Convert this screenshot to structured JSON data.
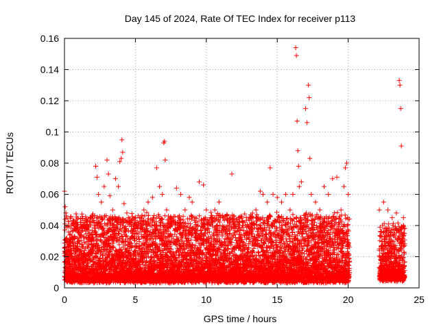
{
  "chart_data": {
    "type": "scatter",
    "title": "Day 145 of 2024, Rate Of TEC Index for receiver p113",
    "xlabel": "GPS time / hours",
    "ylabel": "ROTI / TECUs",
    "xlim": [
      0,
      25
    ],
    "ylim": [
      0,
      0.16
    ],
    "xticks": [
      0,
      5,
      10,
      15,
      20,
      25
    ],
    "xtick_labels": [
      "0",
      "5",
      "10",
      "15",
      "20",
      "25"
    ],
    "yticks": [
      0,
      0.02,
      0.04,
      0.06,
      0.08,
      0.1,
      0.12,
      0.14,
      0.16
    ],
    "ytick_labels": [
      "0",
      "0.02",
      "0.04",
      "0.06",
      "0.08",
      "0.1",
      "0.12",
      "0.14",
      "0.16"
    ],
    "grid": true,
    "marker": "plus",
    "color": "#ff0000",
    "series": [
      {
        "points": [
          [
            0.0,
            0.062
          ],
          [
            0.05,
            0.052
          ],
          [
            0.1,
            0.048
          ],
          [
            0.15,
            0.03
          ],
          [
            0.2,
            0.028
          ],
          [
            0.3,
            0.02
          ],
          [
            0.5,
            0.024
          ],
          [
            0.7,
            0.033
          ],
          [
            1.0,
            0.03
          ],
          [
            1.2,
            0.036
          ],
          [
            1.4,
            0.042
          ],
          [
            1.6,
            0.038
          ],
          [
            1.8,
            0.045
          ],
          [
            2.0,
            0.046
          ],
          [
            2.2,
            0.078
          ],
          [
            2.3,
            0.071
          ],
          [
            2.4,
            0.06
          ],
          [
            2.6,
            0.055
          ],
          [
            2.8,
            0.065
          ],
          [
            3.0,
            0.082
          ],
          [
            3.1,
            0.073
          ],
          [
            3.2,
            0.059
          ],
          [
            3.4,
            0.05
          ],
          [
            3.6,
            0.07
          ],
          [
            3.8,
            0.065
          ],
          [
            3.9,
            0.081
          ],
          [
            4.0,
            0.083
          ],
          [
            4.05,
            0.095
          ],
          [
            4.1,
            0.087
          ],
          [
            4.2,
            0.054
          ],
          [
            4.4,
            0.048
          ],
          [
            4.6,
            0.042
          ],
          [
            4.8,
            0.035
          ],
          [
            5.0,
            0.04
          ],
          [
            5.3,
            0.045
          ],
          [
            5.6,
            0.05
          ],
          [
            5.9,
            0.055
          ],
          [
            6.2,
            0.058
          ],
          [
            6.5,
            0.077
          ],
          [
            6.7,
            0.065
          ],
          [
            6.9,
            0.06
          ],
          [
            7.0,
            0.093
          ],
          [
            7.05,
            0.094
          ],
          [
            7.1,
            0.082
          ],
          [
            7.2,
            0.05
          ],
          [
            7.5,
            0.045
          ],
          [
            7.8,
            0.038
          ],
          [
            7.9,
            0.064
          ],
          [
            8.2,
            0.06
          ],
          [
            8.5,
            0.05
          ],
          [
            8.8,
            0.058
          ],
          [
            9.0,
            0.055
          ],
          [
            9.2,
            0.045
          ],
          [
            9.5,
            0.068
          ],
          [
            9.8,
            0.066
          ],
          [
            10.0,
            0.05
          ],
          [
            10.3,
            0.045
          ],
          [
            10.6,
            0.05
          ],
          [
            10.9,
            0.055
          ],
          [
            11.2,
            0.045
          ],
          [
            11.5,
            0.04
          ],
          [
            11.8,
            0.073
          ],
          [
            12.0,
            0.04
          ],
          [
            12.3,
            0.04
          ],
          [
            12.6,
            0.04
          ],
          [
            12.9,
            0.035
          ],
          [
            13.2,
            0.04
          ],
          [
            13.5,
            0.05
          ],
          [
            13.8,
            0.062
          ],
          [
            14.0,
            0.06
          ],
          [
            14.3,
            0.055
          ],
          [
            14.5,
            0.077
          ],
          [
            14.7,
            0.06
          ],
          [
            15.0,
            0.058
          ],
          [
            15.3,
            0.055
          ],
          [
            15.6,
            0.06
          ],
          [
            15.9,
            0.05
          ],
          [
            16.1,
            0.06
          ],
          [
            16.3,
            0.154
          ],
          [
            16.35,
            0.149
          ],
          [
            16.4,
            0.107
          ],
          [
            16.45,
            0.088
          ],
          [
            16.5,
            0.078
          ],
          [
            16.55,
            0.065
          ],
          [
            16.7,
            0.068
          ],
          [
            17.0,
            0.115
          ],
          [
            17.1,
            0.106
          ],
          [
            17.2,
            0.13
          ],
          [
            17.25,
            0.122
          ],
          [
            17.3,
            0.083
          ],
          [
            17.4,
            0.06
          ],
          [
            17.7,
            0.055
          ],
          [
            18.0,
            0.05
          ],
          [
            18.3,
            0.065
          ],
          [
            18.6,
            0.06
          ],
          [
            18.9,
            0.07
          ],
          [
            19.2,
            0.071
          ],
          [
            19.5,
            0.05
          ],
          [
            19.7,
            0.065
          ],
          [
            19.8,
            0.077
          ],
          [
            19.9,
            0.08
          ],
          [
            20.0,
            0.06
          ],
          [
            22.2,
            0.05
          ],
          [
            22.5,
            0.055
          ],
          [
            22.8,
            0.05
          ],
          [
            23.1,
            0.045
          ],
          [
            23.4,
            0.048
          ],
          [
            23.6,
            0.133
          ],
          [
            23.65,
            0.13
          ],
          [
            23.7,
            0.115
          ],
          [
            23.75,
            0.091
          ],
          [
            23.9,
            0.045
          ]
        ],
        "density_bands": [
          {
            "x_start": 0.0,
            "x_end": 20.1,
            "y_min": 0.003,
            "y_typical": 0.035
          },
          {
            "x_start": 22.2,
            "x_end": 24.0,
            "y_min": 0.004,
            "y_typical": 0.03
          }
        ]
      }
    ]
  }
}
